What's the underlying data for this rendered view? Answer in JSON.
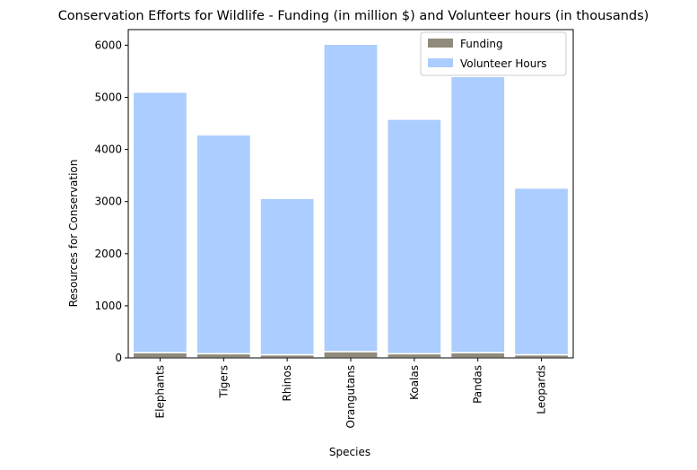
{
  "chart_data": {
    "type": "bar",
    "stacked": true,
    "title": "Conservation Efforts for Wildlife - Funding (in million $) and Volunteer hours (in thousands)",
    "xlabel": "Species",
    "ylabel": "Resources for Conservation",
    "categories": [
      "Elephants",
      "Tigers",
      "Rhinos",
      "Orangutans",
      "Koalas",
      "Pandas",
      "Leopards"
    ],
    "series": [
      {
        "name": "Funding",
        "color": "#8f8a7a",
        "values": [
          100,
          80,
          60,
          120,
          80,
          100,
          60
        ]
      },
      {
        "name": "Volunteer Hours",
        "color": "#abcdff",
        "values": [
          5000,
          4200,
          3000,
          5900,
          4500,
          5300,
          3200
        ]
      }
    ],
    "ylim": [
      0,
      6300
    ],
    "yticks": [
      0,
      1000,
      2000,
      3000,
      4000,
      5000,
      6000
    ],
    "grid": false,
    "legend_position": "top-right"
  }
}
